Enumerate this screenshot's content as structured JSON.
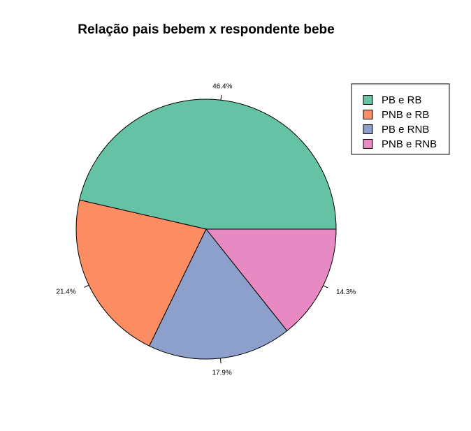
{
  "chart_data": {
    "type": "pie",
    "title": "Relação pais bebem x respondente bebe",
    "slices": [
      {
        "name": "PB e RB",
        "value": 46.4,
        "label": "46.4%",
        "color": "#66C2A5"
      },
      {
        "name": "PNB e RB",
        "value": 21.4,
        "label": "21.4%",
        "color": "#FC8D62"
      },
      {
        "name": "PB e RNB",
        "value": 17.9,
        "label": "17.9%",
        "color": "#8DA0CB"
      },
      {
        "name": "PNB e RNB",
        "value": 14.3,
        "label": "14.3%",
        "color": "#E78AC3"
      }
    ],
    "start_angle": "3-o'clock",
    "direction": "counterclockwise",
    "legend_position": "top-right"
  }
}
